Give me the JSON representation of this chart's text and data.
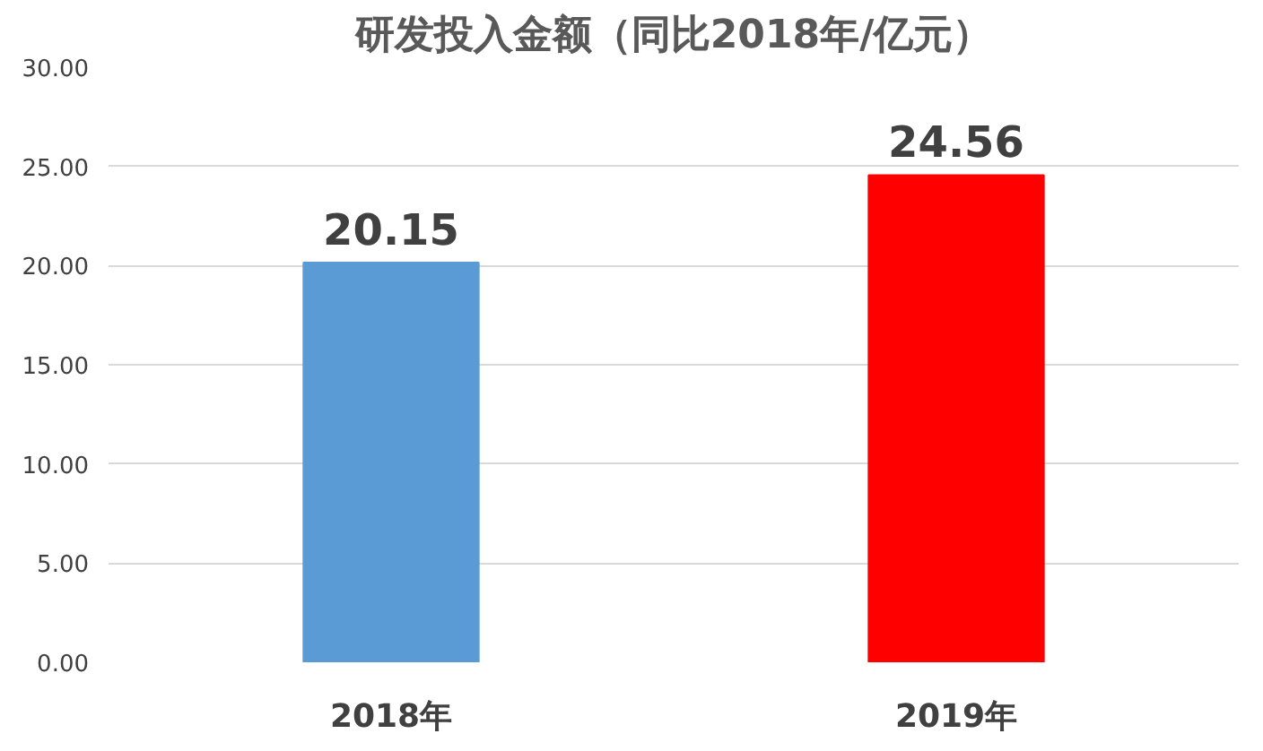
{
  "chart_data": {
    "type": "bar",
    "title": "研发投入金额（同比2018年/亿元）",
    "categories": [
      "2018年",
      "2019年"
    ],
    "values": [
      20.15,
      24.56
    ],
    "colors": [
      "#5b9bd5",
      "#ff0000"
    ],
    "ylim": [
      0,
      30
    ],
    "yticks": [
      {
        "value": 0,
        "label": "0.00"
      },
      {
        "value": 5,
        "label": "5.00"
      },
      {
        "value": 10,
        "label": "10.00"
      },
      {
        "value": 15,
        "label": "15.00"
      },
      {
        "value": 20,
        "label": "20.00"
      },
      {
        "value": 25,
        "label": "25.00"
      },
      {
        "value": 30,
        "label": "30.00"
      }
    ],
    "grid": "y",
    "data_labels": true
  }
}
